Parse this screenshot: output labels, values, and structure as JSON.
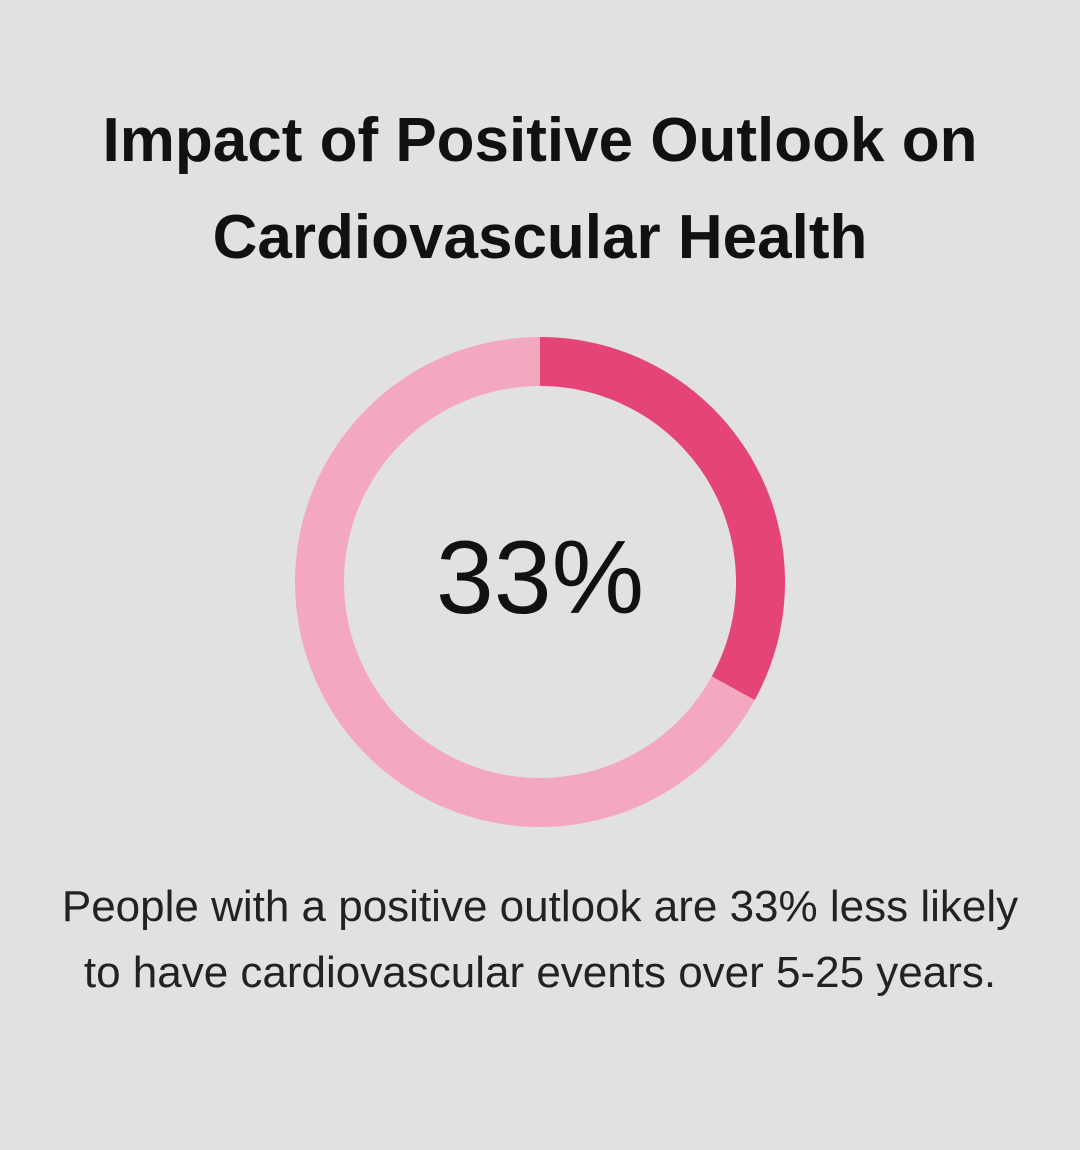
{
  "chart_data": {
    "type": "donut",
    "title": "Impact of Positive Outlook on Cardiovascular Health",
    "values": [
      33,
      67
    ],
    "colors": [
      "#e44576",
      "#f3a8bf"
    ],
    "center_label": "33%",
    "caption": "People with a positive outlook are 33% less likely to have cardiovascular events over 5-25 years."
  }
}
